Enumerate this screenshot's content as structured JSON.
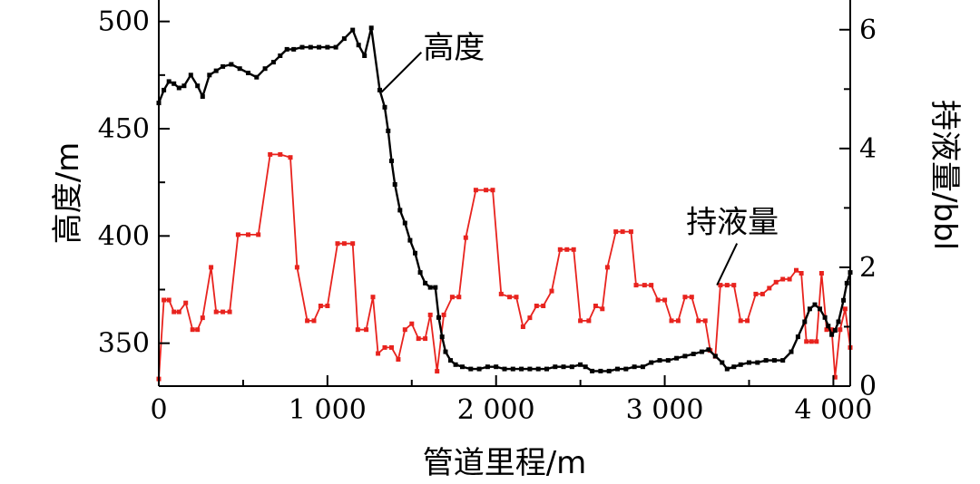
{
  "chart_data": {
    "type": "line",
    "xlabel": "管道里程/m",
    "ylabel_left": "高度/m",
    "ylabel_right": "持液量/bbl",
    "xlim": [
      0,
      4100
    ],
    "ylim_left": [
      330,
      510
    ],
    "ylim_right": [
      0,
      6.5
    ],
    "x_ticks": [
      {
        "value": 0,
        "label": "0"
      },
      {
        "value": 1000,
        "label": "1 000"
      },
      {
        "value": 2000,
        "label": "2 000"
      },
      {
        "value": 3000,
        "label": "3 000"
      },
      {
        "value": 4000,
        "label": "4 000"
      }
    ],
    "y_left_ticks": [
      {
        "value": 350,
        "label": "350"
      },
      {
        "value": 400,
        "label": "400"
      },
      {
        "value": 450,
        "label": "450"
      },
      {
        "value": 500,
        "label": "500"
      }
    ],
    "y_right_ticks": [
      {
        "value": 0,
        "label": "0"
      },
      {
        "value": 2,
        "label": "2"
      },
      {
        "value": 4,
        "label": "4"
      },
      {
        "value": 6,
        "label": "6"
      }
    ],
    "grid": false,
    "annotations": [
      {
        "text": "高度",
        "series": "elevation",
        "x": 1320,
        "y_left": 467
      },
      {
        "text": "持液量",
        "series": "holdup",
        "x": 3310,
        "y_right": 1.7
      }
    ],
    "series": [
      {
        "key": "elevation",
        "axis": "left",
        "color": "#000000",
        "marker": "square",
        "points": [
          [
            0,
            462
          ],
          [
            30,
            468
          ],
          [
            60,
            472
          ],
          [
            90,
            471
          ],
          [
            120,
            469
          ],
          [
            150,
            470
          ],
          [
            190,
            475
          ],
          [
            230,
            470
          ],
          [
            260,
            465
          ],
          [
            300,
            475
          ],
          [
            340,
            477
          ],
          [
            380,
            479
          ],
          [
            430,
            480
          ],
          [
            480,
            478
          ],
          [
            530,
            476
          ],
          [
            580,
            474
          ],
          [
            630,
            478
          ],
          [
            680,
            481
          ],
          [
            720,
            484
          ],
          [
            760,
            487
          ],
          [
            800,
            487
          ],
          [
            850,
            488
          ],
          [
            900,
            488
          ],
          [
            950,
            488
          ],
          [
            1000,
            488
          ],
          [
            1050,
            488
          ],
          [
            1100,
            492
          ],
          [
            1150,
            496
          ],
          [
            1185,
            489
          ],
          [
            1220,
            484
          ],
          [
            1260,
            497
          ],
          [
            1310,
            468
          ],
          [
            1340,
            460
          ],
          [
            1360,
            449
          ],
          [
            1380,
            435
          ],
          [
            1400,
            424
          ],
          [
            1430,
            412
          ],
          [
            1460,
            406
          ],
          [
            1490,
            398
          ],
          [
            1520,
            392
          ],
          [
            1550,
            383
          ],
          [
            1580,
            378
          ],
          [
            1610,
            376
          ],
          [
            1640,
            376
          ],
          [
            1660,
            362
          ],
          [
            1680,
            353
          ],
          [
            1700,
            346
          ],
          [
            1730,
            342
          ],
          [
            1760,
            340
          ],
          [
            1800,
            339
          ],
          [
            1850,
            338
          ],
          [
            1900,
            338
          ],
          [
            1950,
            339
          ],
          [
            2000,
            339
          ],
          [
            2050,
            338
          ],
          [
            2100,
            338
          ],
          [
            2150,
            338
          ],
          [
            2200,
            338
          ],
          [
            2250,
            338
          ],
          [
            2300,
            338
          ],
          [
            2350,
            339
          ],
          [
            2400,
            339
          ],
          [
            2450,
            339
          ],
          [
            2500,
            340
          ],
          [
            2530,
            339
          ],
          [
            2570,
            337
          ],
          [
            2620,
            337
          ],
          [
            2670,
            337
          ],
          [
            2720,
            338
          ],
          [
            2770,
            338
          ],
          [
            2820,
            339
          ],
          [
            2870,
            339
          ],
          [
            2920,
            341
          ],
          [
            2970,
            342
          ],
          [
            3020,
            342
          ],
          [
            3070,
            343
          ],
          [
            3120,
            344
          ],
          [
            3170,
            345
          ],
          [
            3220,
            346
          ],
          [
            3260,
            347
          ],
          [
            3300,
            344
          ],
          [
            3340,
            341
          ],
          [
            3370,
            338
          ],
          [
            3410,
            339
          ],
          [
            3450,
            340
          ],
          [
            3500,
            341
          ],
          [
            3550,
            341
          ],
          [
            3600,
            342
          ],
          [
            3650,
            342
          ],
          [
            3700,
            342
          ],
          [
            3750,
            346
          ],
          [
            3790,
            353
          ],
          [
            3830,
            360
          ],
          [
            3860,
            366
          ],
          [
            3890,
            368
          ],
          [
            3920,
            366
          ],
          [
            3950,
            362
          ],
          [
            3970,
            358
          ],
          [
            3990,
            354
          ],
          [
            4010,
            356
          ],
          [
            4030,
            360
          ],
          [
            4060,
            370
          ],
          [
            4080,
            378
          ],
          [
            4100,
            383
          ]
        ]
      },
      {
        "key": "holdup",
        "axis": "right",
        "color": "#e8231e",
        "marker": "square",
        "points": [
          [
            0,
            0.12
          ],
          [
            30,
            1.45
          ],
          [
            60,
            1.45
          ],
          [
            90,
            1.25
          ],
          [
            120,
            1.25
          ],
          [
            160,
            1.4
          ],
          [
            200,
            0.95
          ],
          [
            230,
            0.95
          ],
          [
            260,
            1.15
          ],
          [
            310,
            2.0
          ],
          [
            340,
            1.25
          ],
          [
            380,
            1.25
          ],
          [
            420,
            1.25
          ],
          [
            470,
            2.55
          ],
          [
            530,
            2.55
          ],
          [
            590,
            2.55
          ],
          [
            660,
            3.9
          ],
          [
            720,
            3.9
          ],
          [
            780,
            3.85
          ],
          [
            820,
            2.0
          ],
          [
            880,
            1.1
          ],
          [
            920,
            1.1
          ],
          [
            960,
            1.35
          ],
          [
            1000,
            1.35
          ],
          [
            1060,
            2.4
          ],
          [
            1100,
            2.4
          ],
          [
            1150,
            2.4
          ],
          [
            1180,
            0.95
          ],
          [
            1230,
            0.95
          ],
          [
            1270,
            1.5
          ],
          [
            1300,
            0.55
          ],
          [
            1340,
            0.65
          ],
          [
            1380,
            0.65
          ],
          [
            1420,
            0.45
          ],
          [
            1460,
            0.95
          ],
          [
            1500,
            1.05
          ],
          [
            1540,
            0.8
          ],
          [
            1580,
            0.8
          ],
          [
            1610,
            1.2
          ],
          [
            1650,
            0.25
          ],
          [
            1690,
            1.2
          ],
          [
            1740,
            1.5
          ],
          [
            1780,
            1.5
          ],
          [
            1820,
            2.5
          ],
          [
            1880,
            3.3
          ],
          [
            1940,
            3.3
          ],
          [
            1980,
            3.3
          ],
          [
            2030,
            1.55
          ],
          [
            2080,
            1.5
          ],
          [
            2120,
            1.5
          ],
          [
            2160,
            1.0
          ],
          [
            2200,
            1.15
          ],
          [
            2240,
            1.35
          ],
          [
            2280,
            1.35
          ],
          [
            2330,
            1.6
          ],
          [
            2380,
            2.3
          ],
          [
            2420,
            2.3
          ],
          [
            2460,
            2.3
          ],
          [
            2500,
            1.1
          ],
          [
            2550,
            1.1
          ],
          [
            2590,
            1.35
          ],
          [
            2630,
            1.3
          ],
          [
            2660,
            2.0
          ],
          [
            2710,
            2.6
          ],
          [
            2750,
            2.6
          ],
          [
            2800,
            2.6
          ],
          [
            2830,
            1.7
          ],
          [
            2880,
            1.7
          ],
          [
            2920,
            1.7
          ],
          [
            2960,
            1.45
          ],
          [
            3000,
            1.45
          ],
          [
            3040,
            1.1
          ],
          [
            3080,
            1.1
          ],
          [
            3120,
            1.5
          ],
          [
            3160,
            1.5
          ],
          [
            3200,
            1.1
          ],
          [
            3240,
            1.1
          ],
          [
            3270,
            0.6
          ],
          [
            3300,
            0.5
          ],
          [
            3330,
            1.7
          ],
          [
            3370,
            1.7
          ],
          [
            3410,
            1.7
          ],
          [
            3450,
            1.1
          ],
          [
            3490,
            1.1
          ],
          [
            3540,
            1.55
          ],
          [
            3580,
            1.55
          ],
          [
            3620,
            1.65
          ],
          [
            3660,
            1.75
          ],
          [
            3700,
            1.8
          ],
          [
            3740,
            1.8
          ],
          [
            3780,
            1.95
          ],
          [
            3810,
            1.9
          ],
          [
            3840,
            0.75
          ],
          [
            3870,
            0.75
          ],
          [
            3900,
            0.75
          ],
          [
            3930,
            1.9
          ],
          [
            3960,
            0.95
          ],
          [
            3990,
            0.95
          ],
          [
            4010,
            0.15
          ],
          [
            4040,
            0.95
          ],
          [
            4070,
            1.3
          ],
          [
            4100,
            0.65
          ]
        ]
      }
    ]
  }
}
